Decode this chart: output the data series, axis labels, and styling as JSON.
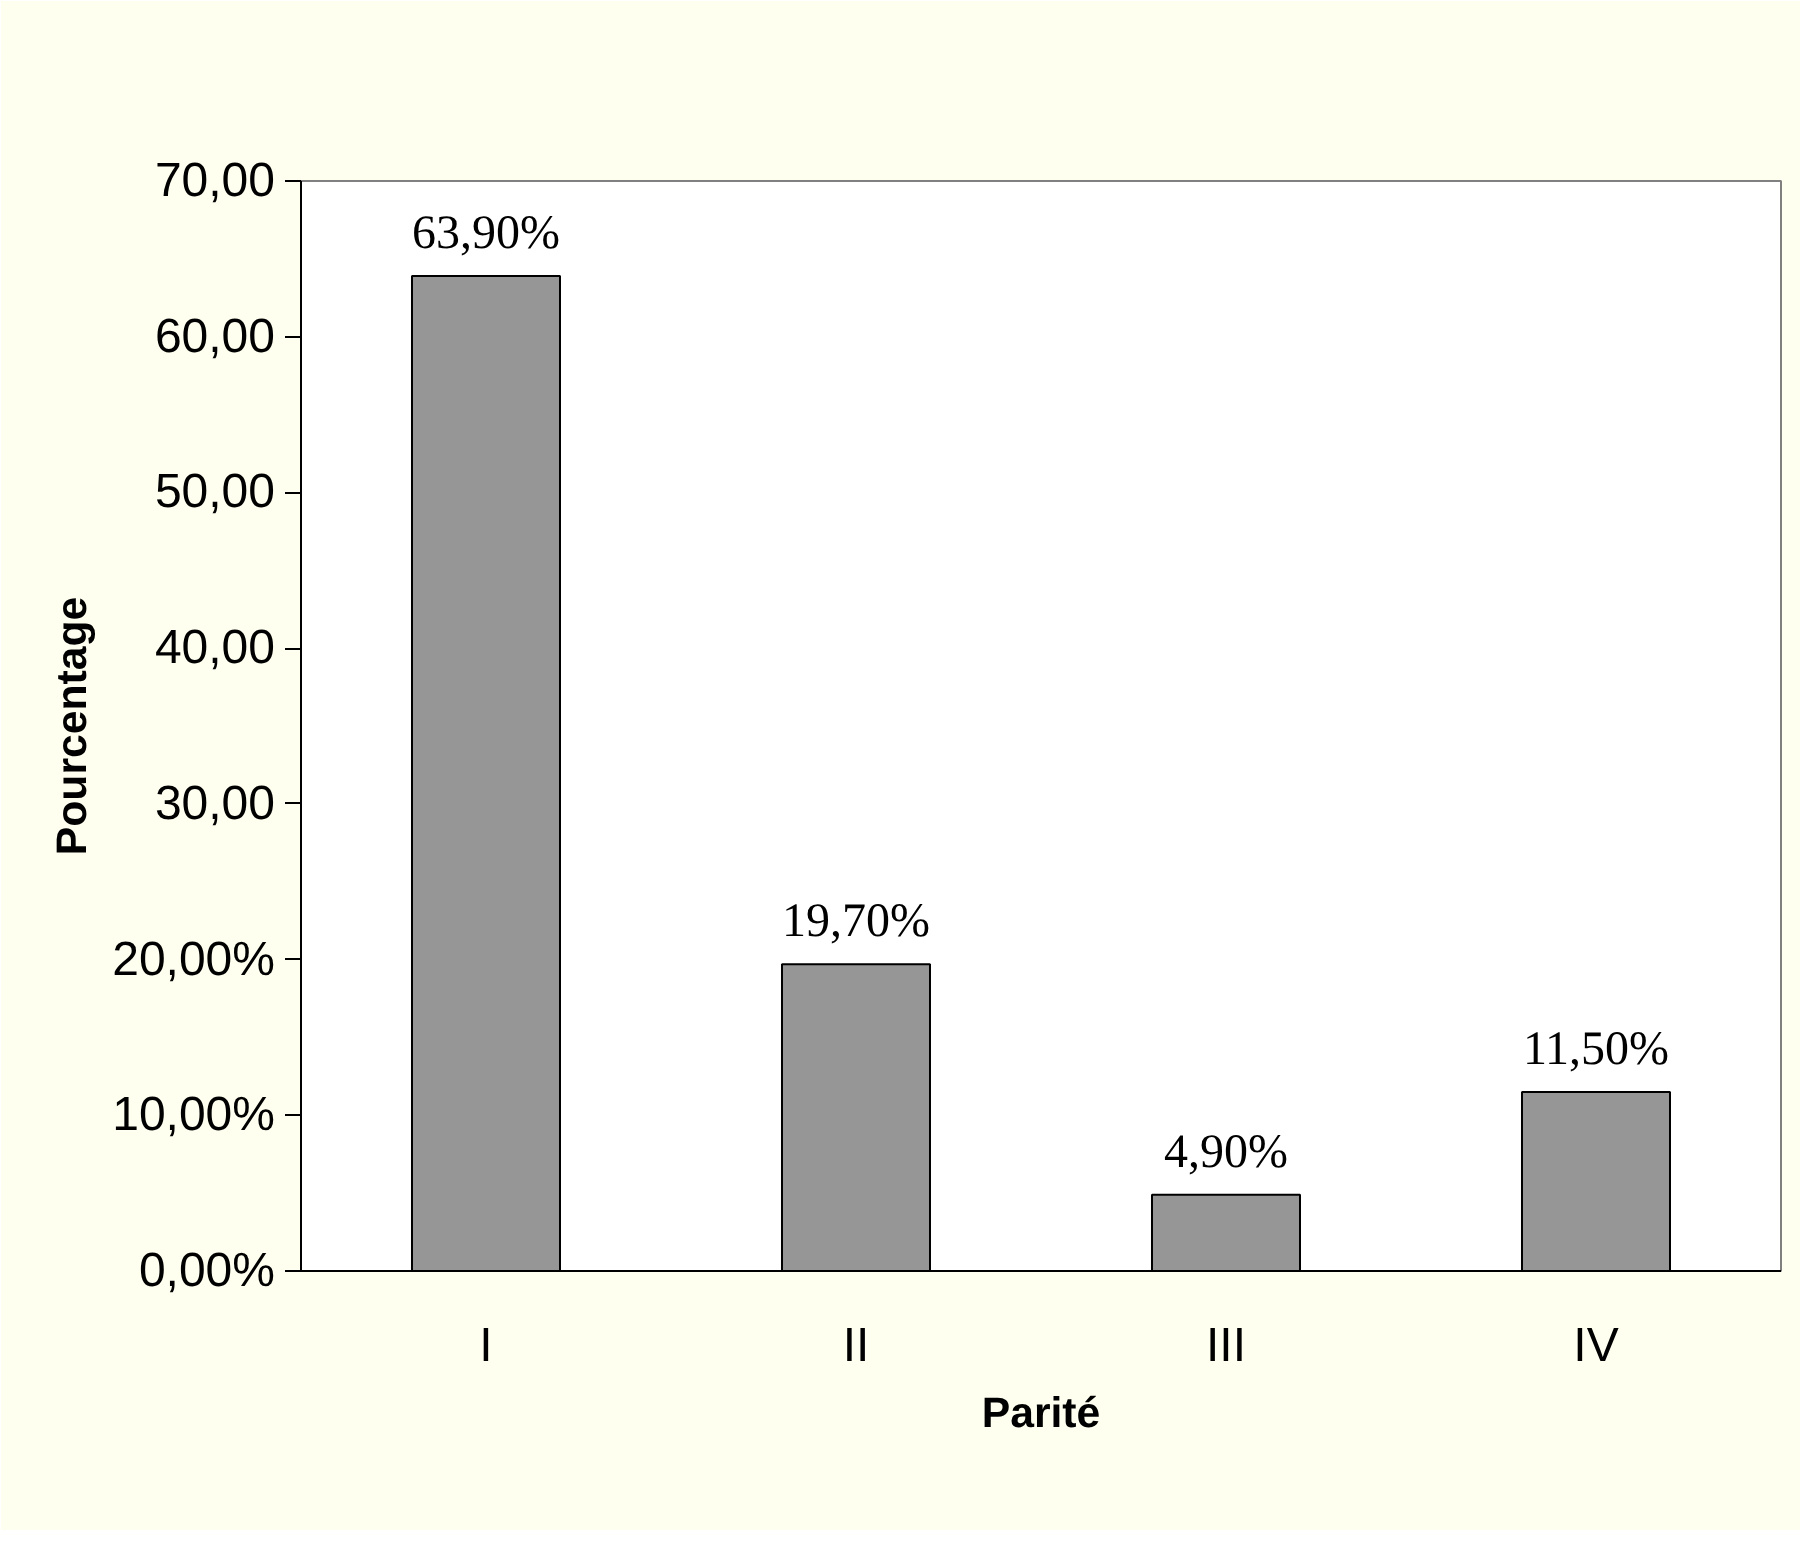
{
  "chart_data": {
    "type": "bar",
    "xlabel": "Parité",
    "ylabel": "Pourcentage",
    "categories": [
      "I",
      "II",
      "III",
      "IV"
    ],
    "values": [
      63.9,
      19.7,
      4.9,
      11.5
    ],
    "value_labels": [
      "63,90%",
      "19,70%",
      "4,90%",
      "11,50%"
    ],
    "color": "#969696",
    "ylim": [
      0,
      70
    ],
    "yticks": [
      {
        "value": 0,
        "label": "0,00%"
      },
      {
        "value": 10,
        "label": "10,00%"
      },
      {
        "value": 20,
        "label": "20,00%"
      },
      {
        "value": 30,
        "label": "30,00"
      },
      {
        "value": 40,
        "label": "40,00"
      },
      {
        "value": 50,
        "label": "50,00"
      },
      {
        "value": 60,
        "label": "60,00"
      },
      {
        "value": 70,
        "label": "70,00"
      }
    ]
  }
}
